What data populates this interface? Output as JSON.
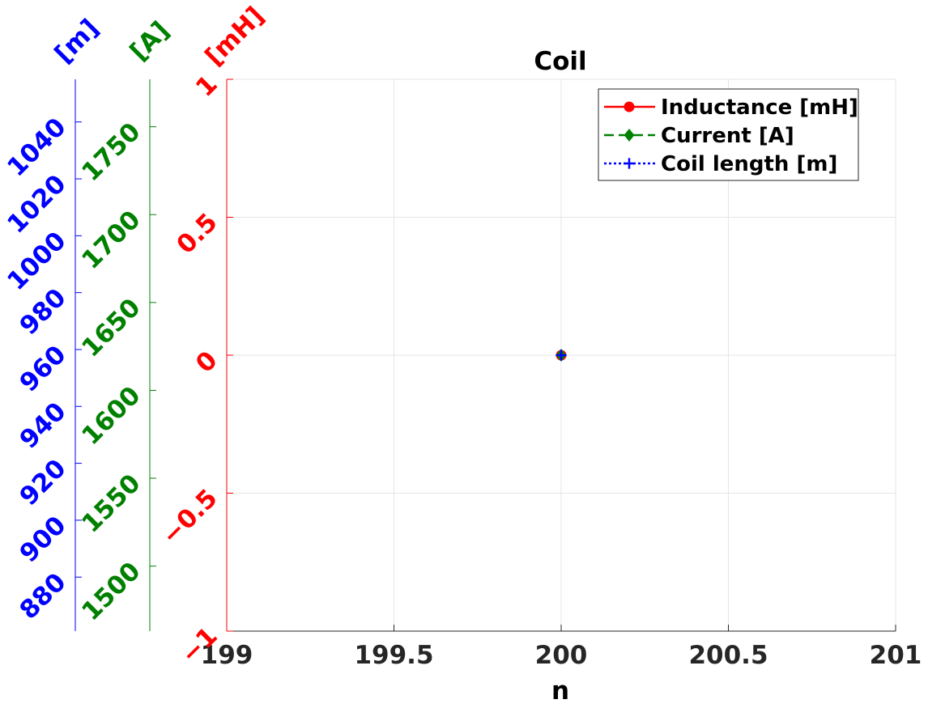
{
  "chart_data": {
    "type": "line",
    "title": "Coil",
    "xlabel": "n",
    "xlim": [
      199,
      201
    ],
    "x_ticks": [
      199,
      199.5,
      200,
      200.5,
      201
    ],
    "x_tick_labels": [
      "199",
      "199.5",
      "200",
      "200.5",
      "201"
    ],
    "grid": true,
    "legend_position": "top-right",
    "axes": [
      {
        "id": "inductance",
        "unit_label": "[mH]",
        "color": "#ff0000",
        "ylim": [
          -1,
          1
        ],
        "ticks": [
          -1,
          -0.5,
          0,
          0.5,
          1
        ],
        "tick_labels": [
          "−1",
          "−0.5",
          "0",
          "0.5",
          "1"
        ]
      },
      {
        "id": "current",
        "unit_label": "[A]",
        "color": "#008000",
        "ylim": [
          1463,
          1777
        ],
        "ticks": [
          1500,
          1550,
          1600,
          1650,
          1700,
          1750
        ],
        "tick_labels": [
          "1500",
          "1550",
          "1600",
          "1650",
          "1700",
          "1750"
        ]
      },
      {
        "id": "length",
        "unit_label": "[m]",
        "color": "#0000ff",
        "ylim": [
          861,
          1055
        ],
        "ticks": [
          880,
          900,
          920,
          940,
          960,
          980,
          1000,
          1020,
          1040
        ],
        "tick_labels": [
          "880",
          "900",
          "920",
          "940",
          "960",
          "980",
          "1000",
          "1020",
          "1040"
        ]
      }
    ],
    "series": [
      {
        "name": "Inductance [mH]",
        "axis": "inductance",
        "color": "#ff0000",
        "line_style": "solid",
        "marker": "circle",
        "x": [
          200
        ],
        "y": [
          0
        ]
      },
      {
        "name": "Current [A]",
        "axis": "current",
        "color": "#008000",
        "line_style": "dashed",
        "marker": "diamond",
        "x": [
          200
        ],
        "y": [
          1620
        ]
      },
      {
        "name": "Coil length [m]",
        "axis": "length",
        "color": "#0000ff",
        "line_style": "dotted",
        "marker": "plus",
        "x": [
          200
        ],
        "y": [
          958
        ]
      }
    ]
  }
}
